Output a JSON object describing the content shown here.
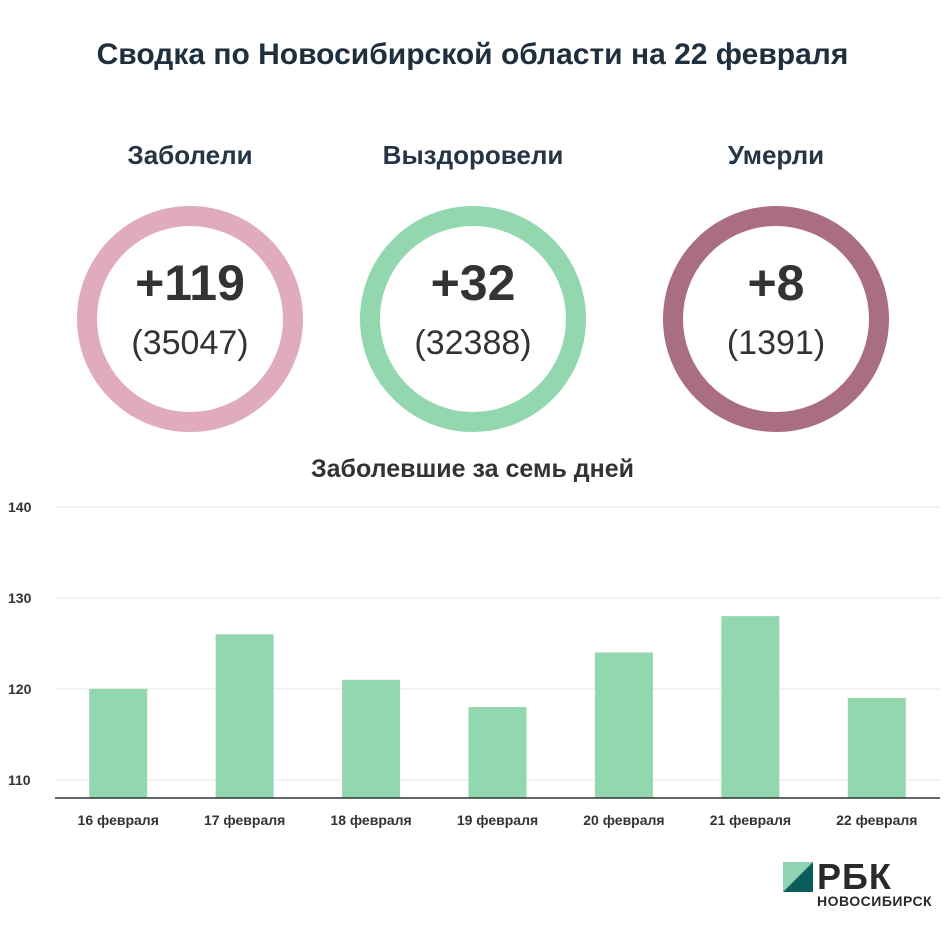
{
  "header": {
    "title": "Сводка по Новосибирской области на 22 февраля"
  },
  "stats": [
    {
      "label": "Заболели",
      "delta": "+119",
      "total": "(35047)",
      "color": "#e0abbb"
    },
    {
      "label": "Выздоровели",
      "delta": "+32",
      "total": "(32388)",
      "color": "#92d7ad"
    },
    {
      "label": "Умерли",
      "delta": "+8",
      "total": "(1391)",
      "color": "#aa6e84"
    }
  ],
  "chart_data": {
    "type": "bar",
    "title": "Заболевшие за семь дней",
    "categories": [
      "16 февраля",
      "17 февраля",
      "18 февраля",
      "19 февраля",
      "20 февраля",
      "21 февраля",
      "22 февраля"
    ],
    "values": [
      120,
      126,
      121,
      118,
      124,
      128,
      119
    ],
    "ylim": [
      108,
      140
    ],
    "yticks": [
      110,
      120,
      130,
      140
    ],
    "grid": true,
    "bar_color": "#92d7ad"
  },
  "logo": {
    "name": "РБК",
    "sub": "НОВОСИБИРСК"
  }
}
